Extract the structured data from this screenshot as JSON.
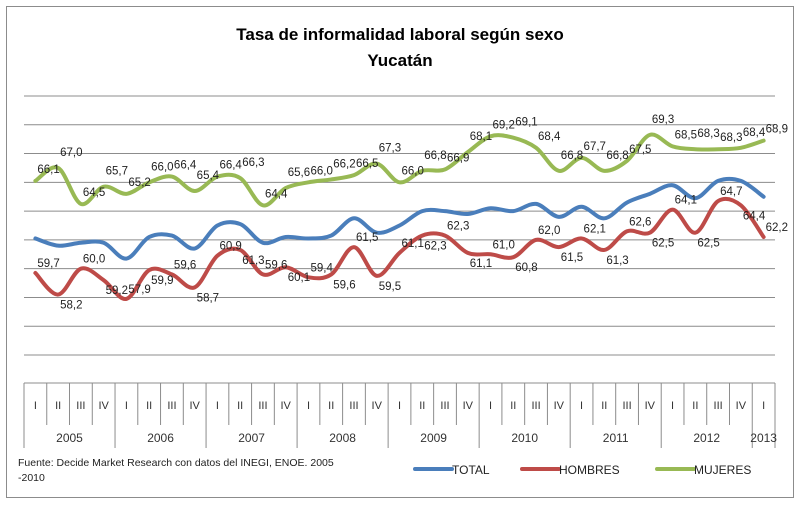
{
  "chart_data": {
    "type": "line",
    "title": "Tasa de informalidad laboral según sexo",
    "subtitle": "Yucatán",
    "ylim": [
      54,
      72
    ],
    "y_gridlines": [
      54,
      56,
      58,
      60,
      62,
      64,
      66,
      68,
      70,
      72
    ],
    "grid": true,
    "legend_position": "bottom-right",
    "quarters": [
      "I",
      "II",
      "III",
      "IV",
      "I",
      "II",
      "III",
      "IV",
      "I",
      "II",
      "III",
      "IV",
      "I",
      "II",
      "III",
      "IV",
      "I",
      "II",
      "III",
      "IV",
      "I",
      "II",
      "III",
      "IV",
      "I",
      "II",
      "III",
      "IV",
      "I",
      "II",
      "III",
      "IV",
      "I"
    ],
    "years": [
      {
        "label": "2005",
        "quarters": 4
      },
      {
        "label": "2006",
        "quarters": 4
      },
      {
        "label": "2007",
        "quarters": 4
      },
      {
        "label": "2008",
        "quarters": 4
      },
      {
        "label": "2009",
        "quarters": 4
      },
      {
        "label": "2010",
        "quarters": 4
      },
      {
        "label": "2011",
        "quarters": 4
      },
      {
        "label": "2012",
        "quarters": 4
      },
      {
        "label": "2013",
        "quarters": 1
      }
    ],
    "series": [
      {
        "name": "TOTAL",
        "color": "#4a7ebb",
        "labeled": false,
        "values": [
          62.1,
          61.6,
          61.8,
          61.8,
          60.7,
          62.2,
          62.3,
          61.4,
          63.0,
          63.1,
          61.8,
          62.2,
          62.1,
          62.3,
          63.5,
          62.5,
          63.0,
          64.0,
          64.0,
          63.8,
          64.2,
          64.0,
          64.5,
          63.6,
          64.3,
          63.5,
          64.6,
          65.2,
          65.8,
          64.9,
          66.1,
          66.1,
          65.0
        ]
      },
      {
        "name": "HOMBRES",
        "color": "#be4b48",
        "labeled": true,
        "values": [
          59.7,
          58.2,
          60.0,
          59.2,
          57.9,
          59.9,
          59.6,
          58.7,
          60.9,
          61.3,
          59.6,
          60.1,
          59.4,
          59.6,
          61.5,
          59.5,
          61.1,
          62.3,
          62.3,
          61.1,
          61.0,
          60.8,
          62.0,
          61.5,
          62.1,
          61.3,
          62.6,
          62.5,
          64.1,
          62.5,
          64.7,
          64.4,
          62.2
        ]
      },
      {
        "name": "MUJERES",
        "color": "#98b954",
        "labeled": true,
        "values": [
          66.1,
          67.0,
          64.5,
          65.7,
          65.2,
          66.0,
          66.4,
          65.4,
          66.4,
          66.3,
          64.4,
          65.6,
          66.0,
          66.2,
          66.5,
          67.3,
          66.0,
          66.8,
          66.9,
          68.1,
          69.2,
          69.1,
          68.4,
          66.8,
          67.7,
          66.8,
          67.5,
          69.3,
          68.5,
          68.3,
          68.3,
          68.4,
          68.9
        ]
      }
    ],
    "source_lines": [
      "Fuente: Decide Market Research con datos del  INEGI, ENOE. 2005",
      "-2010"
    ]
  }
}
